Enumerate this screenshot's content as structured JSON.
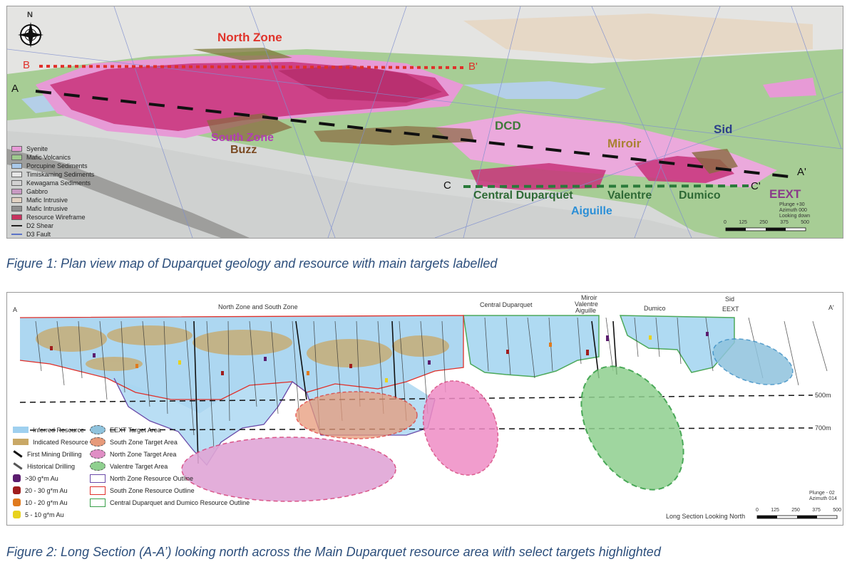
{
  "figure1": {
    "caption": "Figure 1: Plan view map of Duparquet geology and resource with main targets labelled",
    "north_label": "N",
    "section_labels": {
      "b": "B",
      "b_prime": "B'",
      "a": "A",
      "a_prime": "A'",
      "c": "C",
      "c_prime": "C'"
    },
    "targets": [
      {
        "name": "North Zone",
        "color": "#e0342b"
      },
      {
        "name": "South Zone",
        "color": "#b23db5"
      },
      {
        "name": "Buzz",
        "color": "#7a4a22"
      },
      {
        "name": "DCD",
        "color": "#3f7a3a"
      },
      {
        "name": "Miroir",
        "color": "#a98232"
      },
      {
        "name": "Sid",
        "color": "#2c3f8a"
      },
      {
        "name": "Central Duparquet",
        "color": "#2f6a36"
      },
      {
        "name": "Valentre",
        "color": "#2f6a36"
      },
      {
        "name": "Dumico",
        "color": "#2f6a36"
      },
      {
        "name": "Aiguille",
        "color": "#2c8fd6"
      },
      {
        "name": "EEXT",
        "color": "#8a3a8a"
      }
    ],
    "legend": [
      {
        "label": "Syenite",
        "type": "fill",
        "color": "#e79ad6"
      },
      {
        "label": "Mafic Volcanics",
        "type": "fill",
        "color": "#9fca8e"
      },
      {
        "label": "Porcupine Sediments",
        "type": "fill",
        "color": "#a9c9ea"
      },
      {
        "label": "Timiskaming Sediments",
        "type": "fill",
        "color": "#e6e6e6"
      },
      {
        "label": "Kewagama Sediments",
        "type": "fill",
        "color": "#d2d2d2"
      },
      {
        "label": "Gabbro",
        "type": "fill",
        "color": "#c89ac2"
      },
      {
        "label": "Mafic Intrusive",
        "type": "fill",
        "color": "#e2d2c2"
      },
      {
        "label": "Mafic Intrusive",
        "type": "fill",
        "color": "#8f8f8f"
      },
      {
        "label": "Resource Wireframe",
        "type": "fill",
        "color": "#c8325f"
      },
      {
        "label": "D2 Shear",
        "type": "line",
        "color": "#222222"
      },
      {
        "label": "D3 Fault",
        "type": "line",
        "color": "#5b73c7"
      }
    ],
    "plunge_note": [
      "Plunge +30",
      "Azimuth 000",
      "Looking down"
    ],
    "scale_ticks": [
      "0",
      "125",
      "250",
      "375",
      "500"
    ]
  },
  "figure2": {
    "caption": "Figure 2: Long Section (A-A’) looking north across the Main Duparquet resource area with select targets highlighted",
    "end_labels": {
      "left": "A",
      "right": "A'"
    },
    "area_labels": [
      "North Zone and South Zone",
      "Central Duparquet",
      "Miroir",
      "Valentre",
      "Aiguille",
      "Dumico",
      "Sid",
      "EEXT"
    ],
    "depth_labels": [
      "500m",
      "700m"
    ],
    "legend_left": [
      {
        "label": "Inferred Resource",
        "color": "#9fd0ef"
      },
      {
        "label": "Indicated Resource",
        "color": "#c9a866"
      },
      {
        "label": "First Mining Drilling",
        "color": "#111111"
      },
      {
        "label": "Historical Drilling",
        "color": "#555555"
      },
      {
        "label": ">30 g*m Au",
        "color": "#5b1d6e"
      },
      {
        "label": "20 - 30 g*m Au",
        "color": "#a01d1d"
      },
      {
        "label": "10 - 20 g*m Au",
        "color": "#e07a1d"
      },
      {
        "label": "5 - 10 g*m Au",
        "color": "#e8d21d"
      }
    ],
    "legend_right": [
      {
        "label": "EEXT Target Area",
        "color": "#8fc3dd",
        "dash": true
      },
      {
        "label": "South Zone Target Area",
        "color": "#e79a7a",
        "dash": true
      },
      {
        "label": "North Zone Target Area",
        "color": "#e08ec5",
        "dash": true
      },
      {
        "label": "Valentre Target Area",
        "color": "#8fd08f",
        "dash": true
      },
      {
        "label": "North Zone Resource Outline",
        "color": "#6a4aa8",
        "dash": false
      },
      {
        "label": "South Zone Resource Outline",
        "color": "#e0302a",
        "dash": false
      },
      {
        "label": "Central Duparquet and Dumico Resource Outline",
        "color": "#3aa04a",
        "dash": false
      }
    ],
    "plunge_note": [
      "Plunge - 02",
      "Azimuth 014"
    ],
    "view_note": "Long Section Looking North",
    "scale_ticks": [
      "0",
      "125",
      "250",
      "375",
      "500"
    ]
  }
}
